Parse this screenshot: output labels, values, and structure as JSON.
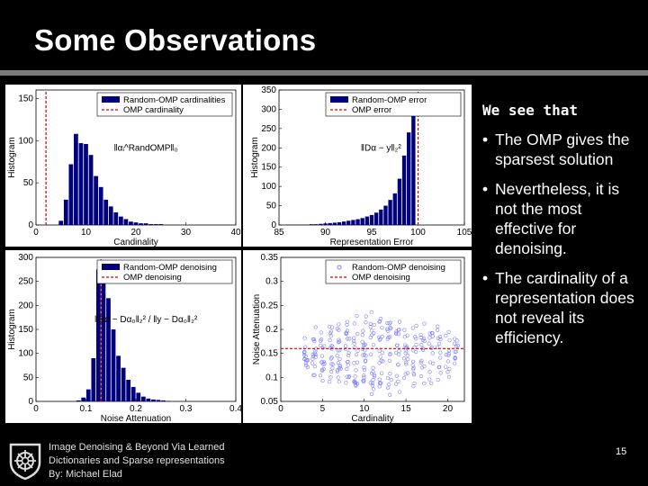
{
  "slide": {
    "title": "Some Observations",
    "lead": "We see that",
    "bullets": [
      "The OMP gives the sparsest solution",
      "Nevertheless, it is not the most effective for denoising.",
      "The cardinality of a representation does not reveal its efficiency."
    ],
    "footer": [
      "Image Denoising & Beyond Via Learned",
      "Dictionaries and Sparse representations",
      "By: Michael Elad"
    ],
    "page_number": "15"
  },
  "colors": {
    "bar": "#00007f",
    "omp_line": "#d00000",
    "scatter": "#7f7fff"
  },
  "chart_data": [
    {
      "type": "bar",
      "name": "cardinality-histogram",
      "xlabel": "Candinality",
      "ylabel": "Histogram",
      "xlim": [
        0,
        40
      ],
      "ylim": [
        0,
        160
      ],
      "xticks": [
        0,
        10,
        20,
        30,
        40
      ],
      "yticks": [
        0,
        50,
        100,
        150
      ],
      "legend": [
        "Random-OMP cardinalities",
        "OMP cardinality"
      ],
      "formula": "‖αᵢ^RandOMP‖₀",
      "bin_width": 1,
      "x": [
        5,
        6,
        7,
        8,
        9,
        10,
        11,
        12,
        13,
        14,
        15,
        16,
        17,
        18,
        19,
        20,
        21,
        22,
        23,
        24,
        25
      ],
      "values": [
        5,
        30,
        72,
        108,
        97,
        96,
        83,
        58,
        45,
        30,
        22,
        15,
        10,
        7,
        4,
        3,
        2,
        2,
        1,
        1,
        1
      ],
      "omp_value": 2
    },
    {
      "type": "bar",
      "name": "error-histogram",
      "xlabel": "Representation Error",
      "ylabel": "Histogram",
      "xlim": [
        85,
        105
      ],
      "ylim": [
        0,
        350
      ],
      "xticks": [
        85,
        90,
        95,
        100,
        105
      ],
      "yticks": [
        0,
        50,
        100,
        150,
        200,
        250,
        300,
        350
      ],
      "legend": [
        "Random-OMP error",
        "OMP error"
      ],
      "formula": "‖Dα − y‖₂²",
      "bin_width": 0.5,
      "x": [
        86,
        86.5,
        87,
        87.5,
        88,
        88.5,
        89,
        89.5,
        90,
        90.5,
        91,
        91.5,
        92,
        92.5,
        93,
        93.5,
        94,
        94.5,
        95,
        95.5,
        96,
        96.5,
        97,
        97.5,
        98,
        98.5,
        99,
        99.5
      ],
      "values": [
        1,
        1,
        1,
        1,
        1,
        2,
        2,
        3,
        4,
        5,
        6,
        7,
        9,
        11,
        13,
        15,
        18,
        22,
        26,
        32,
        40,
        50,
        65,
        82,
        120,
        180,
        240,
        288
      ],
      "omp_value": 100
    },
    {
      "type": "bar",
      "name": "denoising-histogram",
      "xlabel": "Noise Attenuation",
      "ylabel": "Histogram",
      "xlim": [
        0,
        0.4
      ],
      "ylim": [
        0,
        300
      ],
      "xticks": [
        0,
        0.1,
        0.2,
        0.3,
        0.4
      ],
      "yticks": [
        0,
        50,
        100,
        150,
        200,
        250,
        300
      ],
      "legend": [
        "Random-OMP denoising",
        "OMP denoising"
      ],
      "formula": "‖Dα − Dα₀‖₂² / ‖y − Dα₀‖₂²",
      "bin_width": 0.01,
      "x": [
        0.085,
        0.095,
        0.105,
        0.115,
        0.125,
        0.135,
        0.145,
        0.155,
        0.165,
        0.175,
        0.185,
        0.195,
        0.205,
        0.215,
        0.225,
        0.235,
        0.245,
        0.255,
        0.265
      ],
      "values": [
        2,
        8,
        25,
        90,
        275,
        265,
        215,
        150,
        95,
        70,
        45,
        30,
        18,
        10,
        6,
        4,
        3,
        2,
        1
      ],
      "omp_value": 0.13
    },
    {
      "type": "scatter",
      "name": "cardinality-vs-denoising",
      "xlabel": "Cardinality",
      "ylabel": "Noise Attenuation",
      "xlim": [
        0,
        22
      ],
      "ylim": [
        0.05,
        0.35
      ],
      "xticks": [
        0,
        5,
        10,
        15,
        20
      ],
      "yticks": [
        0.05,
        0.1,
        0.15,
        0.2,
        0.25,
        0.3,
        0.35
      ],
      "legend": [
        "Random-OMP denoising",
        "OMP denoising"
      ],
      "x_range": [
        3,
        21
      ],
      "y_center": 0.15,
      "omp_value": 0.16
    }
  ]
}
